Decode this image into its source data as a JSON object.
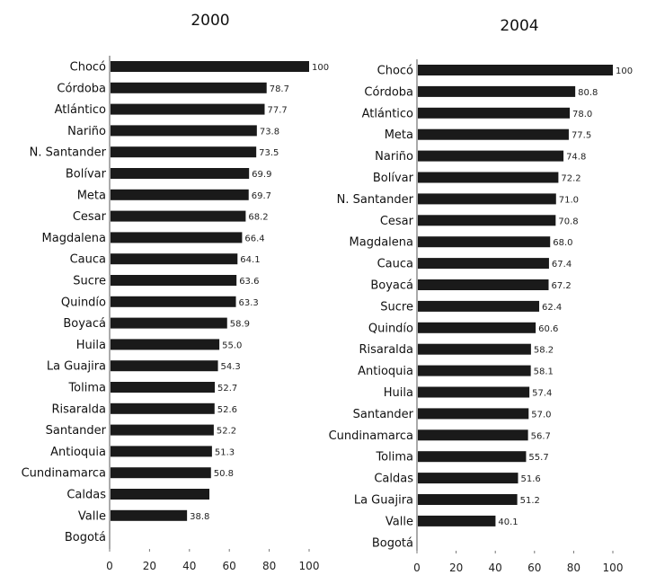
{
  "chart_data": [
    {
      "type": "bar",
      "orientation": "horizontal",
      "title": "2000",
      "categories": [
        "Chocó",
        "Córdoba",
        "Atlántico",
        "Nariño",
        "N. Santander",
        "Bolívar",
        "Meta",
        "Cesar",
        "Magdalena",
        "Cauca",
        "Sucre",
        "Quindío",
        "Boyacá",
        "Huila",
        "La Guajira",
        "Tolima",
        "Risaralda",
        "Santander",
        "Antioquia",
        "Cundinamarca",
        "Caldas",
        "Valle",
        "Bogotá"
      ],
      "values": [
        100,
        78.7,
        77.7,
        73.8,
        73.5,
        69.9,
        69.7,
        68.2,
        66.4,
        64.1,
        63.6,
        63.3,
        58.9,
        55.0,
        54.3,
        52.7,
        52.6,
        52.2,
        51.3,
        50.8,
        50.0,
        38.8,
        0
      ],
      "value_labels": [
        "100",
        "78.7",
        "77.7",
        "73.8",
        "73.5",
        "69.9",
        "69.7",
        "68.2",
        "66.4",
        "64.1",
        "63.6",
        "63.3",
        "58.9",
        "55.0",
        "54.3",
        "52.7",
        "52.6",
        "52.2",
        "51.3",
        "50.8",
        "",
        "38.8",
        ""
      ],
      "xlim": [
        0,
        100
      ],
      "xticks": [
        "0",
        "20",
        "40",
        "60",
        "80",
        "100"
      ],
      "grid": false,
      "bar_color": "#1a1a1a"
    },
    {
      "type": "bar",
      "orientation": "horizontal",
      "title": "2004",
      "categories": [
        "Chocó",
        "Córdoba",
        "Atlántico",
        "Meta",
        "Nariño",
        "Bolívar",
        "N. Santander",
        "Cesar",
        "Magdalena",
        "Cauca",
        "Boyacá",
        "Sucre",
        "Quindío",
        "Risaralda",
        "Antioquia",
        "Huila",
        "Santander",
        "Cundinamarca",
        "Tolima",
        "Caldas",
        "La Guajira",
        "Valle",
        "Bogotá"
      ],
      "values": [
        100,
        80.8,
        78.0,
        77.5,
        74.8,
        72.2,
        71.0,
        70.8,
        68.0,
        67.4,
        67.2,
        62.4,
        60.6,
        58.2,
        58.1,
        57.4,
        57.0,
        56.7,
        55.7,
        51.6,
        51.2,
        40.1,
        0
      ],
      "value_labels": [
        "100",
        "80.8",
        "78.0",
        "77.5",
        "74.8",
        "72.2",
        "71.0",
        "70.8",
        "68.0",
        "67.4",
        "67.2",
        "62.4",
        "60.6",
        "58.2",
        "58.1",
        "57.4",
        "57.0",
        "56.7",
        "55.7",
        "51.6",
        "51.2",
        "40.1",
        ""
      ],
      "xlim": [
        0,
        100
      ],
      "xticks": [
        "0",
        "20",
        "40",
        "60",
        "80",
        "100"
      ],
      "grid": false,
      "bar_color": "#1a1a1a"
    }
  ]
}
